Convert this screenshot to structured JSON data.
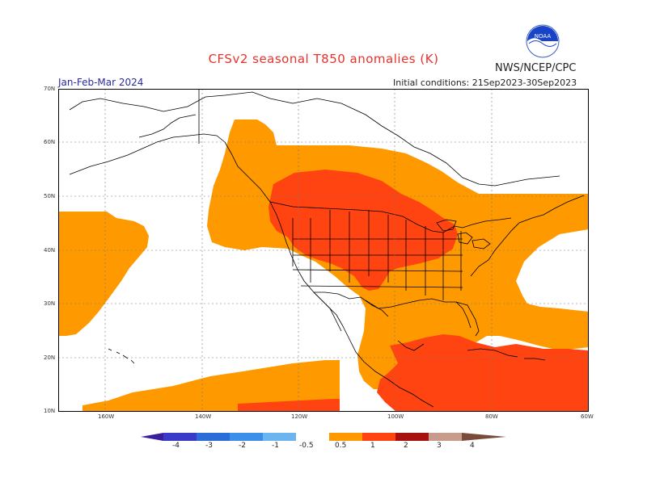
{
  "title": "CFSv2 seasonal T850 anomalies (K)",
  "organization": "NWS/NCEP/CPC",
  "logo_text": "NOAA",
  "period": "Jan-Feb-Mar 2024",
  "initial_conditions": "Initial conditions: 21Sep2023-30Sep2023",
  "lat_labels": [
    "70N",
    "60N",
    "50N",
    "40N",
    "30N",
    "20N",
    "10N"
  ],
  "lon_labels": [
    "160W",
    "140W",
    "120W",
    "100W",
    "80W",
    "60W"
  ],
  "colorbar": {
    "ticks": [
      "-4",
      "-3",
      "-2",
      "-1",
      "-0.5",
      "0.5",
      "1",
      "2",
      "3",
      "4"
    ],
    "colors": [
      "#3a1f9c",
      "#3a3ac8",
      "#2a6cd8",
      "#3d8ee8",
      "#6cb4f0",
      "#ffffff",
      "#ff9900",
      "#ff4411",
      "#a80f0f",
      "#c89c8c",
      "#7a4a3a"
    ]
  },
  "anomaly_regions": [
    {
      "category": "0.5 to 1 K",
      "color": "#ff9900",
      "area": "Pacific, western/central North America, Gulf of Mexico, Caribbean"
    },
    {
      "category": "1 to 2 K",
      "color": "#ff4411",
      "area": "Northern Plains / Upper Midwest, Mexico, Caribbean"
    }
  ]
}
